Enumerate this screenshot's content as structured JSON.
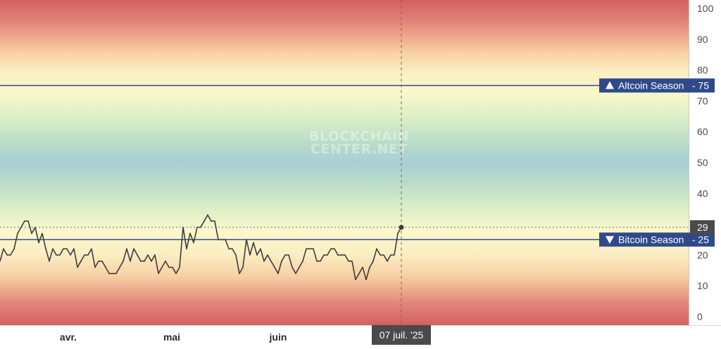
{
  "watermark": {
    "line1": "BLOCKCHAIN",
    "line2": "CENTER.NET"
  },
  "chart_data": {
    "type": "line",
    "title": "",
    "xlabel": "",
    "ylabel": "",
    "ylim": [
      0,
      100
    ],
    "y_ticks": [
      0,
      10,
      20,
      30,
      40,
      50,
      60,
      70,
      80,
      90,
      100
    ],
    "x_tick_labels": [
      "avr.",
      "mai",
      "juin"
    ],
    "grid": false,
    "background": "vertical gradient red (top) - yellow - green - blue (50) - green - yellow - red (bottom)",
    "series": [
      {
        "color": "#3d3d3d",
        "values": [
          18,
          22,
          20,
          20,
          22,
          27,
          29,
          31,
          31,
          27,
          29,
          24,
          27,
          22,
          18,
          22,
          20,
          20,
          22,
          22,
          20,
          22,
          16,
          18,
          20,
          20,
          22,
          16,
          18,
          18,
          16,
          14,
          14,
          14,
          16,
          18,
          22,
          18,
          22,
          20,
          18,
          18,
          20,
          18,
          20,
          14,
          16,
          18,
          16,
          16,
          14,
          16,
          29,
          22,
          27,
          24,
          29,
          29,
          31,
          33,
          31,
          31,
          25,
          25,
          25,
          22,
          22,
          20,
          14,
          16,
          25,
          20,
          24,
          20,
          22,
          18,
          20,
          18,
          16,
          14,
          18,
          20,
          20,
          16,
          14,
          16,
          18,
          22,
          22,
          22,
          18,
          18,
          20,
          20,
          22,
          22,
          20,
          20,
          20,
          18,
          18,
          12,
          14,
          16,
          12,
          16,
          18,
          22,
          20,
          20,
          18,
          20,
          20,
          27,
          29
        ]
      }
    ],
    "reference_lines": [
      {
        "label": "Altcoin Season",
        "value": 75,
        "direction": "up",
        "color": "#2e4a8a"
      },
      {
        "label": "Bitcoin Season",
        "value": 25,
        "direction": "down",
        "color": "#2e4a8a"
      }
    ],
    "crosshair": {
      "date_label": "07 juil. '25",
      "value": 29
    }
  }
}
